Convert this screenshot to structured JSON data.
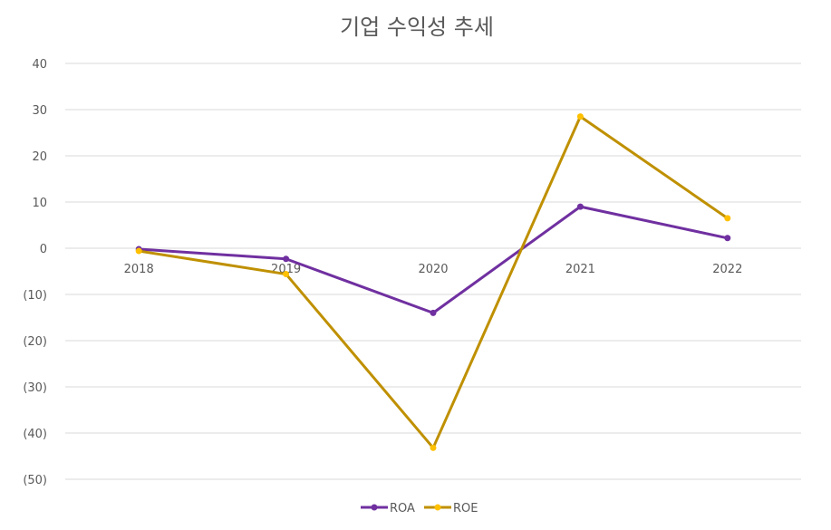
{
  "chart_data": {
    "type": "line",
    "title": "기업 수익성 추세",
    "categories": [
      "2018",
      "2019",
      "2020",
      "2021",
      "2022"
    ],
    "series": [
      {
        "name": "ROA",
        "values": [
          -0.2,
          -2.3,
          -14.0,
          9.0,
          2.2
        ],
        "color": "#7030a0"
      },
      {
        "name": "ROE",
        "values": [
          -0.6,
          -5.6,
          -43.2,
          28.5,
          6.5
        ],
        "color": "#bf9000",
        "marker_color": "#ffc000"
      }
    ],
    "ylim": [
      -50,
      40
    ],
    "yticks": [
      "40",
      "30",
      "20",
      "10",
      "0",
      "(10)",
      "(20)",
      "(30)",
      "(40)",
      "(50)"
    ],
    "ytick_values": [
      40,
      30,
      20,
      10,
      0,
      -10,
      -20,
      -30,
      -40,
      -50
    ],
    "xlabel": "",
    "ylabel": "",
    "grid": true,
    "legend_position": "bottom"
  }
}
